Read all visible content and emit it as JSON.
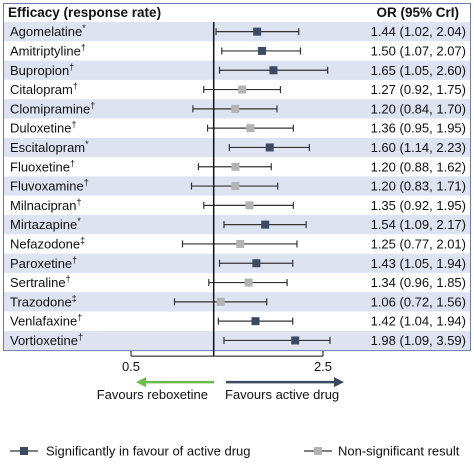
{
  "chart_data": {
    "type": "forest",
    "header_left": "Efficacy (response rate)",
    "header_right": "OR (95% CrI)",
    "x_scale": "log",
    "xlim": [
      0.5,
      2.5
    ],
    "reference_line": 1.0,
    "xticks": [
      {
        "value": 0.5,
        "label": "0.5"
      },
      {
        "value": 2.5,
        "label": "2.5"
      }
    ],
    "favours_left": "Favours reboxetine",
    "favours_right": "Favours active drug",
    "arrow_left_color": "#6dbb4b",
    "arrow_right_color": "#3b4a63",
    "legend": [
      {
        "label": "Significantly in favour of active drug",
        "color": "#3b4a63"
      },
      {
        "label": "Non-significant result",
        "color": "#b3b3b3"
      }
    ],
    "rows": [
      {
        "drug": "Agomelatine",
        "mark": "*",
        "or": 1.44,
        "lo": 1.02,
        "hi": 2.04,
        "text": "1.44 (1.02, 2.04)",
        "significant": true
      },
      {
        "drug": "Amitriptyline",
        "mark": "†",
        "or": 1.5,
        "lo": 1.07,
        "hi": 2.07,
        "text": "1.50 (1.07, 2.07)",
        "significant": true
      },
      {
        "drug": "Bupropion",
        "mark": "†",
        "or": 1.65,
        "lo": 1.05,
        "hi": 2.6,
        "text": "1.65 (1.05, 2.60)",
        "significant": true
      },
      {
        "drug": "Citalopram",
        "mark": "†",
        "or": 1.27,
        "lo": 0.92,
        "hi": 1.75,
        "text": "1.27 (0.92, 1.75)",
        "significant": false
      },
      {
        "drug": "Clomipramine",
        "mark": "†",
        "or": 1.2,
        "lo": 0.84,
        "hi": 1.7,
        "text": "1.20 (0.84, 1.70)",
        "significant": false
      },
      {
        "drug": "Duloxetine",
        "mark": "†",
        "or": 1.36,
        "lo": 0.95,
        "hi": 1.95,
        "text": "1.36 (0.95, 1.95)",
        "significant": false
      },
      {
        "drug": "Escitalopram",
        "mark": "*",
        "or": 1.6,
        "lo": 1.14,
        "hi": 2.23,
        "text": "1.60 (1.14, 2.23)",
        "significant": true
      },
      {
        "drug": "Fluoxetine",
        "mark": "†",
        "or": 1.2,
        "lo": 0.88,
        "hi": 1.62,
        "text": "1.20 (0.88, 1.62)",
        "significant": false
      },
      {
        "drug": "Fluvoxamine",
        "mark": "†",
        "or": 1.2,
        "lo": 0.83,
        "hi": 1.71,
        "text": "1.20 (0.83, 1.71)",
        "significant": false
      },
      {
        "drug": "Milnacipran",
        "mark": "†",
        "or": 1.35,
        "lo": 0.92,
        "hi": 1.95,
        "text": "1.35 (0.92, 1.95)",
        "significant": false
      },
      {
        "drug": "Mirtazapine",
        "mark": "*",
        "or": 1.54,
        "lo": 1.09,
        "hi": 2.17,
        "text": "1.54 (1.09, 2.17)",
        "significant": true
      },
      {
        "drug": "Nefazodone",
        "mark": "‡",
        "or": 1.25,
        "lo": 0.77,
        "hi": 2.01,
        "text": "1.25 (0.77, 2.01)",
        "significant": false
      },
      {
        "drug": "Paroxetine",
        "mark": "†",
        "or": 1.43,
        "lo": 1.05,
        "hi": 1.94,
        "text": "1.43 (1.05, 1.94)",
        "significant": true
      },
      {
        "drug": "Sertraline",
        "mark": "†",
        "or": 1.34,
        "lo": 0.96,
        "hi": 1.85,
        "text": "1.34 (0.96, 1.85)",
        "significant": false
      },
      {
        "drug": "Trazodone",
        "mark": "‡",
        "or": 1.06,
        "lo": 0.72,
        "hi": 1.56,
        "text": "1.06 (0.72, 1.56)",
        "significant": false
      },
      {
        "drug": "Venlafaxine",
        "mark": "†",
        "or": 1.42,
        "lo": 1.04,
        "hi": 1.94,
        "text": "1.42 (1.04, 1.94)",
        "significant": true
      },
      {
        "drug": "Vortioxetine",
        "mark": "†",
        "or": 1.98,
        "lo": 1.09,
        "hi": 3.59,
        "text": "1.98 (1.09, 3.59)",
        "significant": true
      }
    ],
    "colors": {
      "significant": "#3b4a63",
      "non_significant": "#b3b3b3",
      "row_alt": "#dde3f1",
      "row_base": "#ffffff",
      "header_bg": "#ffffff",
      "border": "#6b7da8",
      "ci_line": "#333333",
      "reference_line": "#111111"
    }
  }
}
